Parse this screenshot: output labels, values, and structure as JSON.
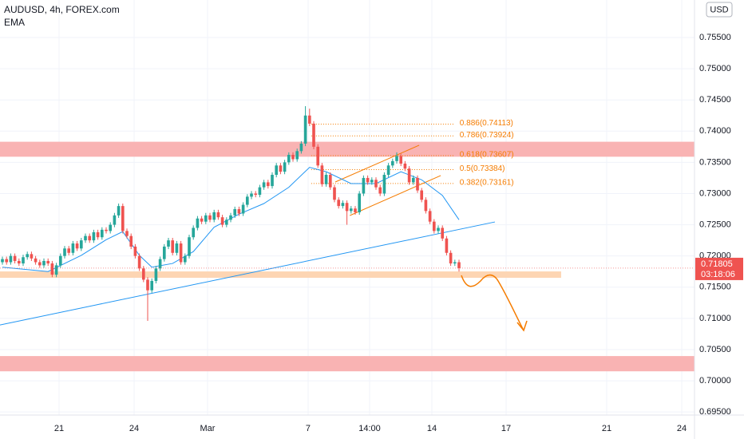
{
  "chart_data": {
    "type": "candlestick",
    "title": "AUDUSD, 4h, FOREX.com",
    "indicator": "EMA",
    "currency": "USD",
    "up_color": "#26a69a",
    "down_color": "#ef5350",
    "candles": [
      [
        0.719,
        0.7199,
        0.7186,
        0.7195
      ],
      [
        0.7195,
        0.7199,
        0.7186,
        0.719
      ],
      [
        0.719,
        0.7204,
        0.7186,
        0.72
      ],
      [
        0.72,
        0.7204,
        0.7188,
        0.7192
      ],
      [
        0.7192,
        0.7196,
        0.7184,
        0.7188
      ],
      [
        0.7188,
        0.7202,
        0.7184,
        0.7198
      ],
      [
        0.7198,
        0.7207,
        0.7194,
        0.7203
      ],
      [
        0.7203,
        0.7207,
        0.7192,
        0.7196
      ],
      [
        0.7196,
        0.72,
        0.7186,
        0.719
      ],
      [
        0.719,
        0.7194,
        0.7181,
        0.7185
      ],
      [
        0.7185,
        0.7196,
        0.7181,
        0.7192
      ],
      [
        0.7192,
        0.7196,
        0.7184,
        0.7188
      ],
      [
        0.7188,
        0.7192,
        0.7166,
        0.717
      ],
      [
        0.717,
        0.7189,
        0.7166,
        0.7185
      ],
      [
        0.7185,
        0.7204,
        0.7181,
        0.72
      ],
      [
        0.72,
        0.7216,
        0.7196,
        0.7212
      ],
      [
        0.7212,
        0.7216,
        0.7201,
        0.7205
      ],
      [
        0.7205,
        0.7224,
        0.7201,
        0.722
      ],
      [
        0.722,
        0.7224,
        0.7208,
        0.7212
      ],
      [
        0.7212,
        0.7229,
        0.7208,
        0.7225
      ],
      [
        0.7225,
        0.7236,
        0.7221,
        0.7232
      ],
      [
        0.7232,
        0.7236,
        0.7221,
        0.7225
      ],
      [
        0.7225,
        0.7242,
        0.7221,
        0.7238
      ],
      [
        0.7238,
        0.7242,
        0.7226,
        0.723
      ],
      [
        0.723,
        0.7246,
        0.7226,
        0.7242
      ],
      [
        0.7242,
        0.7246,
        0.7236,
        0.724
      ],
      [
        0.724,
        0.7254,
        0.7236,
        0.725
      ],
      [
        0.725,
        0.7269,
        0.7246,
        0.7265
      ],
      [
        0.7265,
        0.7284,
        0.7261,
        0.728
      ],
      [
        0.728,
        0.7284,
        0.7236,
        0.724
      ],
      [
        0.724,
        0.7244,
        0.7228,
        0.7232
      ],
      [
        0.7232,
        0.7236,
        0.7211,
        0.7215
      ],
      [
        0.7215,
        0.7219,
        0.7196,
        0.72
      ],
      [
        0.72,
        0.7204,
        0.7176,
        0.718
      ],
      [
        0.718,
        0.7184,
        0.7158,
        0.7162
      ],
      [
        0.7162,
        0.7166,
        0.7096,
        0.7145
      ],
      [
        0.7145,
        0.7164,
        0.7141,
        0.716
      ],
      [
        0.716,
        0.7184,
        0.7156,
        0.718
      ],
      [
        0.718,
        0.7199,
        0.7176,
        0.7195
      ],
      [
        0.7195,
        0.7219,
        0.7191,
        0.7215
      ],
      [
        0.7215,
        0.7229,
        0.7211,
        0.7225
      ],
      [
        0.7225,
        0.7229,
        0.7201,
        0.7205
      ],
      [
        0.7205,
        0.7224,
        0.7201,
        0.722
      ],
      [
        0.722,
        0.7224,
        0.7186,
        0.719
      ],
      [
        0.719,
        0.7204,
        0.7186,
        0.72
      ],
      [
        0.72,
        0.7234,
        0.7196,
        0.723
      ],
      [
        0.723,
        0.7249,
        0.7226,
        0.7245
      ],
      [
        0.7245,
        0.7264,
        0.7241,
        0.726
      ],
      [
        0.726,
        0.7264,
        0.7251,
        0.7255
      ],
      [
        0.7255,
        0.7269,
        0.7251,
        0.7265
      ],
      [
        0.7265,
        0.7269,
        0.7254,
        0.7258
      ],
      [
        0.7258,
        0.7274,
        0.7254,
        0.727
      ],
      [
        0.727,
        0.7274,
        0.7258,
        0.7262
      ],
      [
        0.7262,
        0.7266,
        0.7246,
        0.725
      ],
      [
        0.725,
        0.7262,
        0.7246,
        0.7258
      ],
      [
        0.7258,
        0.7269,
        0.7254,
        0.7265
      ],
      [
        0.7265,
        0.7279,
        0.7261,
        0.7275
      ],
      [
        0.7275,
        0.7279,
        0.7264,
        0.7268
      ],
      [
        0.7268,
        0.7286,
        0.7264,
        0.7282
      ],
      [
        0.7282,
        0.7299,
        0.7278,
        0.7295
      ],
      [
        0.7295,
        0.7304,
        0.7291,
        0.73
      ],
      [
        0.73,
        0.7304,
        0.7294,
        0.7298
      ],
      [
        0.7298,
        0.7314,
        0.7294,
        0.731
      ],
      [
        0.731,
        0.7322,
        0.7306,
        0.7318
      ],
      [
        0.7318,
        0.7322,
        0.7308,
        0.7312
      ],
      [
        0.7312,
        0.7334,
        0.7308,
        0.733
      ],
      [
        0.733,
        0.7349,
        0.7326,
        0.7345
      ],
      [
        0.7345,
        0.7349,
        0.7331,
        0.7335
      ],
      [
        0.7335,
        0.7354,
        0.7331,
        0.735
      ],
      [
        0.735,
        0.7366,
        0.7346,
        0.7362
      ],
      [
        0.7362,
        0.7366,
        0.7351,
        0.7355
      ],
      [
        0.7355,
        0.7372,
        0.7351,
        0.7368
      ],
      [
        0.7368,
        0.7384,
        0.7364,
        0.738
      ],
      [
        0.738,
        0.744,
        0.7376,
        0.7425
      ],
      [
        0.7425,
        0.7436,
        0.7408,
        0.7412
      ],
      [
        0.7412,
        0.7416,
        0.7371,
        0.7375
      ],
      [
        0.7375,
        0.7379,
        0.7341,
        0.7345
      ],
      [
        0.7345,
        0.7349,
        0.7311,
        0.7315
      ],
      [
        0.7315,
        0.7334,
        0.7311,
        0.733
      ],
      [
        0.733,
        0.7334,
        0.7306,
        0.731
      ],
      [
        0.731,
        0.7314,
        0.7286,
        0.729
      ],
      [
        0.729,
        0.7294,
        0.7276,
        0.728
      ],
      [
        0.728,
        0.7289,
        0.7276,
        0.7285
      ],
      [
        0.7285,
        0.7289,
        0.725,
        0.7272
      ],
      [
        0.7272,
        0.728,
        0.7268,
        0.7276
      ],
      [
        0.7276,
        0.728,
        0.7266,
        0.727
      ],
      [
        0.727,
        0.7304,
        0.7266,
        0.73
      ],
      [
        0.73,
        0.7329,
        0.7296,
        0.7325
      ],
      [
        0.7325,
        0.7329,
        0.7314,
        0.7318
      ],
      [
        0.7318,
        0.7326,
        0.7314,
        0.7322
      ],
      [
        0.7322,
        0.7326,
        0.7306,
        0.731
      ],
      [
        0.731,
        0.7314,
        0.7296,
        0.73
      ],
      [
        0.73,
        0.7334,
        0.7296,
        0.733
      ],
      [
        0.733,
        0.7349,
        0.7326,
        0.7345
      ],
      [
        0.7345,
        0.7356,
        0.7341,
        0.7352
      ],
      [
        0.7352,
        0.7366,
        0.7348,
        0.736
      ],
      [
        0.736,
        0.7364,
        0.7344,
        0.7348
      ],
      [
        0.7348,
        0.7352,
        0.7336,
        0.734
      ],
      [
        0.734,
        0.7344,
        0.7314,
        0.7318
      ],
      [
        0.7318,
        0.7329,
        0.7314,
        0.7325
      ],
      [
        0.7325,
        0.7329,
        0.7301,
        0.7305
      ],
      [
        0.7305,
        0.7309,
        0.7286,
        0.729
      ],
      [
        0.729,
        0.7294,
        0.7268,
        0.7272
      ],
      [
        0.7272,
        0.7276,
        0.7251,
        0.7255
      ],
      [
        0.7255,
        0.7259,
        0.7236,
        0.724
      ],
      [
        0.724,
        0.7249,
        0.7236,
        0.7245
      ],
      [
        0.7245,
        0.7249,
        0.7224,
        0.7228
      ],
      [
        0.7228,
        0.7232,
        0.7201,
        0.7205
      ],
      [
        0.7205,
        0.7209,
        0.7184,
        0.7188
      ],
      [
        0.7188,
        0.7194,
        0.7184,
        0.719
      ],
      [
        0.719,
        0.7194,
        0.7175,
        0.71805
      ]
    ],
    "ema": {
      "color": "#2196f3",
      "x": [
        0,
        11,
        19,
        25,
        29,
        33,
        36,
        41,
        46,
        51,
        57,
        63,
        69,
        74,
        78,
        84,
        90,
        96,
        101,
        106,
        110
      ],
      "values": [
        0.7182,
        0.7175,
        0.7201,
        0.7226,
        0.7239,
        0.7201,
        0.7182,
        0.7188,
        0.7207,
        0.7246,
        0.7267,
        0.7284,
        0.731,
        0.7342,
        0.7335,
        0.7316,
        0.7316,
        0.7335,
        0.7322,
        0.7297,
        0.7258
      ]
    },
    "xlim": [
      -0.577,
      166.73
    ],
    "ylim": [
      0.69451,
      0.76101
    ],
    "xticks": [
      {
        "value": 13.65,
        "label": "21"
      },
      {
        "value": 31.73,
        "label": "24"
      },
      {
        "value": 49.42,
        "label": "Mar"
      },
      {
        "value": 73.65,
        "label": "7"
      },
      {
        "value": 88.46,
        "label": "14:00"
      },
      {
        "value": 103.46,
        "label": "14"
      },
      {
        "value": 121.35,
        "label": "17"
      },
      {
        "value": 145.58,
        "label": "21"
      },
      {
        "value": 163.65,
        "label": "24"
      }
    ],
    "yticks": [
      {
        "value": 0.755,
        "label": "0.75500"
      },
      {
        "value": 0.75,
        "label": "0.75000"
      },
      {
        "value": 0.745,
        "label": "0.74500"
      },
      {
        "value": 0.74,
        "label": "0.74000"
      },
      {
        "value": 0.735,
        "label": "0.73500"
      },
      {
        "value": 0.73,
        "label": "0.73000"
      },
      {
        "value": 0.725,
        "label": "0.72500"
      },
      {
        "value": 0.72,
        "label": "0.72000"
      },
      {
        "value": 0.715,
        "label": "0.71500"
      },
      {
        "value": 0.71,
        "label": "0.71000"
      },
      {
        "value": 0.705,
        "label": "0.70500"
      },
      {
        "value": 0.7,
        "label": "0.70000"
      },
      {
        "value": 0.695,
        "label": "0.69500"
      }
    ],
    "last_price": 0.71805,
    "countdown": "03:18:06",
    "zones": [
      {
        "color": "#f9b3b3",
        "top": 0.7383,
        "bottom": 0.7359
      },
      {
        "color": "#f9b3b3",
        "top": 0.70396,
        "bottom": 0.70152
      },
      {
        "color": "#fdd5b3",
        "top": 0.71752,
        "bottom": 0.7165,
        "x_end": 134.6
      }
    ],
    "trendline": {
      "color": "#2196f3",
      "x": [
        -0.58,
        118.65
      ],
      "values": [
        0.70895,
        0.72545
      ]
    },
    "channel": {
      "color": "#f57c00",
      "lines": [
        {
          "x": [
            80.2,
            100.4
          ],
          "values": [
            0.73185,
            0.73774
          ]
        },
        {
          "x": [
            83.7,
            105.6
          ],
          "values": [
            0.72648,
            0.73288
          ]
        }
      ]
    },
    "fib": {
      "color": "#f57c00",
      "x": [
        74.4,
        109.0
      ],
      "levels": [
        {
          "value": 0.74113,
          "label": "0.886(0.74113)"
        },
        {
          "value": 0.73924,
          "label": "0.786(0.73924)"
        },
        {
          "value": 0.73607,
          "label": "0.618(0.73607)"
        },
        {
          "value": 0.73384,
          "label": "0.5(0.73384)"
        },
        {
          "value": 0.73161,
          "label": "0.382(0.73161)"
        }
      ]
    }
  }
}
